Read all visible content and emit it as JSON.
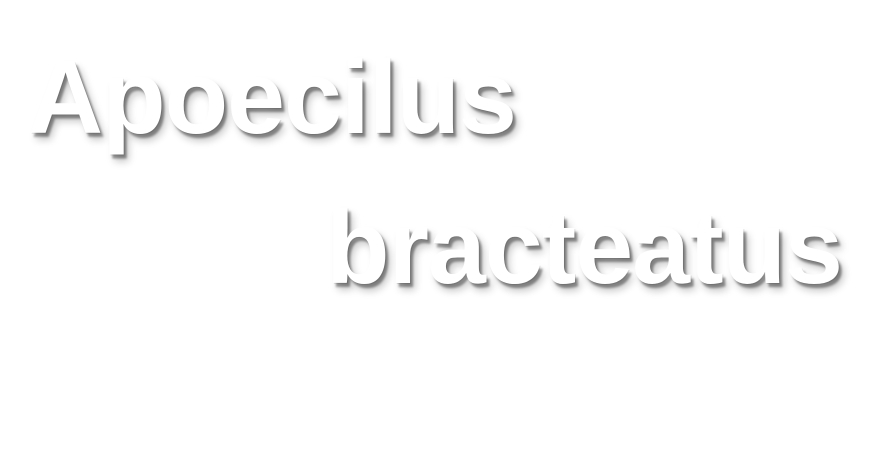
{
  "title": {
    "genus": "Apoecilus",
    "species": "bracteatus"
  },
  "colors": {
    "background": "#ffffff",
    "text": "#ffffff",
    "shadow": "#000000"
  }
}
